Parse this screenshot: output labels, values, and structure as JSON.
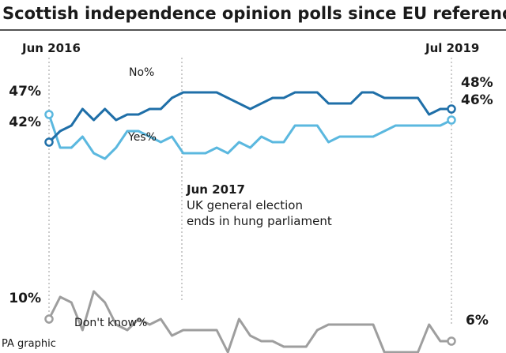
{
  "chart_data": {
    "type": "line",
    "title": "Scottish independence opinion polls since EU referendum",
    "start_label": "Jun 2016",
    "end_label": "Jul 2019",
    "credit": "PA graphic",
    "annotation": {
      "heading": "Jun 2017",
      "lines": [
        "UK general election",
        "ends in hung parliament"
      ]
    },
    "ylim": [
      0,
      60
    ],
    "colors": {
      "no": "#1f6fa8",
      "yes": "#5bb8df",
      "dont_know": "#9e9e9e"
    },
    "series": [
      {
        "name": "No%",
        "key": "no",
        "start_label": "42%",
        "end_label": "48%",
        "values": [
          42,
          44,
          45,
          48,
          46,
          48,
          46,
          47,
          47,
          48,
          48,
          50,
          51,
          51,
          51,
          51,
          50,
          49,
          48,
          49,
          50,
          50,
          51,
          51,
          51,
          49,
          49,
          49,
          51,
          51,
          50,
          50,
          50,
          50,
          47,
          48,
          48
        ]
      },
      {
        "name": "Yes%",
        "key": "yes",
        "start_label": "47%",
        "end_label": "46%",
        "values": [
          47,
          41,
          41,
          43,
          40,
          39,
          41,
          44,
          44,
          43,
          42,
          43,
          40,
          40,
          40,
          41,
          40,
          42,
          41,
          43,
          42,
          42,
          45,
          45,
          45,
          42,
          43,
          43,
          43,
          43,
          44,
          45,
          45,
          45,
          45,
          45,
          46
        ]
      },
      {
        "name": "Don't know%",
        "key": "dont_know",
        "start_label": "10%",
        "end_label": "6%",
        "values": [
          10,
          14,
          13,
          8,
          15,
          13,
          9,
          8,
          10,
          9,
          10,
          7,
          8,
          8,
          8,
          8,
          4,
          10,
          7,
          6,
          6,
          5,
          5,
          5,
          8,
          9,
          9,
          9,
          9,
          9,
          4,
          4,
          4,
          4,
          9,
          6,
          6
        ]
      }
    ]
  }
}
